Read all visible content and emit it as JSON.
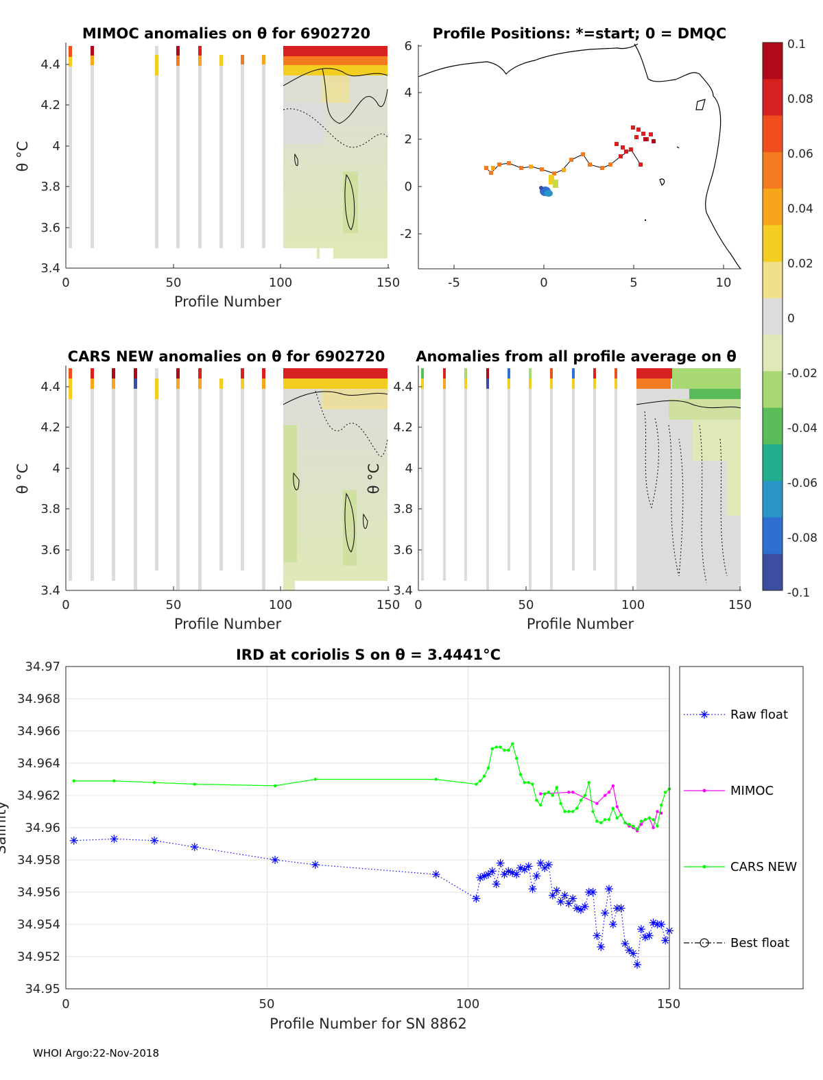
{
  "footer": "WHOI Argo:22-Nov-2018",
  "colorbar": {
    "ticks": [
      "0.1",
      "0.08",
      "0.06",
      "0.04",
      "0.02",
      "0",
      "-0.02",
      "-0.04",
      "-0.06",
      "-0.08",
      "-0.1"
    ],
    "range": [
      -0.1,
      0.1
    ],
    "colors": [
      "#3b4ea1",
      "#2f6fd2",
      "#2a96c8",
      "#22ad8c",
      "#5bbd5a",
      "#a8d872",
      "#dfe8b7",
      "#dcdcdc",
      "#f0e08a",
      "#f3cd1f",
      "#f7a51b",
      "#f47b20",
      "#ee4f1d",
      "#d72020",
      "#b00a1a"
    ]
  },
  "panels": {
    "mimoc": {
      "title": "MIMOC anomalies on θ  for 6902720",
      "ylabel": "θ °C",
      "xlabel": "Profile Number",
      "xticks": [
        "0",
        "50",
        "100",
        "150"
      ],
      "yticks": [
        "4.4",
        "4.2",
        "4",
        "3.8",
        "3.6",
        "3.4"
      ]
    },
    "positions": {
      "title": "Profile Positions: *=start; 0 = DMQC",
      "xticks": [
        "-5",
        "0",
        "5",
        "10"
      ],
      "yticks": [
        "6",
        "4",
        "2",
        "0",
        "-2"
      ]
    },
    "cars": {
      "title": "CARS NEW anomalies on θ for 6902720",
      "ylabel": "θ °C",
      "xlabel": "Profile Number",
      "xticks": [
        "0",
        "50",
        "100",
        "150"
      ],
      "yticks": [
        "4.4",
        "4.2",
        "4",
        "3.8",
        "3.6",
        "3.4"
      ]
    },
    "avg": {
      "title": "Anomalies from all profile average on θ",
      "ylabel": "θ °C",
      "xlabel": "Profile Number",
      "xticks": [
        "0",
        "50",
        "100",
        "150"
      ],
      "yticks": [
        "4.4",
        "4.2",
        "4",
        "3.8",
        "3.6",
        "3.4"
      ]
    }
  },
  "chart_data": {
    "type": "line",
    "title": "IRD at coriolis S on θ = 3.4441°C",
    "xlabel": "Profile Number for SN 8862",
    "ylabel": "Salinity",
    "xlim": [
      0,
      150
    ],
    "ylim": [
      34.95,
      34.97
    ],
    "xticks": [
      "0",
      "50",
      "100",
      "150"
    ],
    "yticks": [
      "34.97",
      "34.968",
      "34.966",
      "34.964",
      "34.962",
      "34.96",
      "34.958",
      "34.956",
      "34.954",
      "34.952",
      "34.95"
    ],
    "grid": true,
    "legend_position": "outside-right",
    "series": [
      {
        "name": "Raw float",
        "color": "#0000ff",
        "style": "dotted",
        "marker": "asterisk",
        "x": [
          2,
          12,
          22,
          32,
          52,
          62,
          92,
          102,
          103,
          104,
          105,
          106,
          107,
          108,
          109,
          110,
          111,
          112,
          113,
          114,
          115,
          116,
          117,
          118,
          119,
          120,
          121,
          122,
          123,
          124,
          125,
          126,
          127,
          128,
          129,
          130,
          131,
          132,
          133,
          134,
          135,
          136,
          137,
          138,
          139,
          140,
          141,
          142,
          143,
          144,
          145,
          146,
          147,
          148,
          149,
          150
        ],
        "y": [
          34.9592,
          34.9593,
          34.9592,
          34.9588,
          34.958,
          34.9577,
          34.9571,
          34.9556,
          34.9569,
          34.957,
          34.9571,
          34.9573,
          34.9565,
          34.9578,
          34.9571,
          34.9573,
          34.9572,
          34.9571,
          34.9575,
          34.9574,
          34.9576,
          34.9562,
          34.957,
          34.9578,
          34.9575,
          34.9577,
          34.9558,
          34.9561,
          34.9554,
          34.9558,
          34.9553,
          34.9556,
          34.955,
          34.9549,
          34.9551,
          34.956,
          34.956,
          34.9533,
          34.9526,
          34.9547,
          34.9562,
          34.954,
          34.955,
          34.955,
          34.9528,
          34.9524,
          34.9522,
          34.9515,
          34.9537,
          34.9532,
          34.9533,
          34.9541,
          34.954,
          34.954,
          34.953,
          34.9536
        ]
      },
      {
        "name": "MIMOC",
        "color": "#ff00ff",
        "style": "solid",
        "marker": "dot",
        "x": [
          118,
          125,
          126,
          132,
          134,
          135,
          136,
          137,
          138,
          139,
          140,
          141,
          142,
          143,
          144,
          145,
          146,
          147,
          148
        ],
        "y": [
          34.9621,
          34.9622,
          34.9622,
          34.9615,
          34.962,
          34.9622,
          34.9626,
          34.9613,
          34.9608,
          34.9603,
          34.9601,
          34.96,
          34.9598,
          34.9602,
          34.9605,
          34.9606,
          34.96,
          34.961,
          34.9609
        ]
      },
      {
        "name": "CARS NEW",
        "color": "#00ff00",
        "style": "solid",
        "marker": "dot",
        "x": [
          2,
          12,
          22,
          32,
          52,
          62,
          92,
          102,
          103,
          104,
          105,
          106,
          107,
          108,
          109,
          110,
          111,
          112,
          113,
          114,
          115,
          116,
          117,
          118,
          119,
          120,
          121,
          122,
          123,
          124,
          125,
          126,
          127,
          128,
          129,
          130,
          131,
          132,
          133,
          134,
          135,
          136,
          137,
          138,
          139,
          140,
          141,
          142,
          143,
          144,
          145,
          146,
          147,
          148,
          149,
          150
        ],
        "y": [
          34.9629,
          34.9629,
          34.9628,
          34.9627,
          34.9626,
          34.963,
          34.963,
          34.9627,
          34.9629,
          34.9632,
          34.9637,
          34.9649,
          34.965,
          34.965,
          34.9648,
          34.9648,
          34.9652,
          34.9643,
          34.9633,
          34.9628,
          34.9628,
          34.9627,
          34.9617,
          34.9614,
          34.9621,
          34.9622,
          34.962,
          34.9625,
          34.9615,
          34.961,
          34.961,
          34.961,
          34.9612,
          34.9617,
          34.962,
          34.9628,
          34.961,
          34.9604,
          34.9603,
          34.9605,
          34.9605,
          34.9612,
          34.9606,
          34.9608,
          34.9603,
          34.9602,
          34.9601,
          34.9599,
          34.9604,
          34.9605,
          34.9606,
          34.9605,
          34.9601,
          34.9614,
          34.9622,
          34.9624
        ]
      },
      {
        "name": "Best float",
        "color": "#000000",
        "style": "dashdot",
        "marker": "circle",
        "x": [],
        "y": []
      }
    ]
  }
}
